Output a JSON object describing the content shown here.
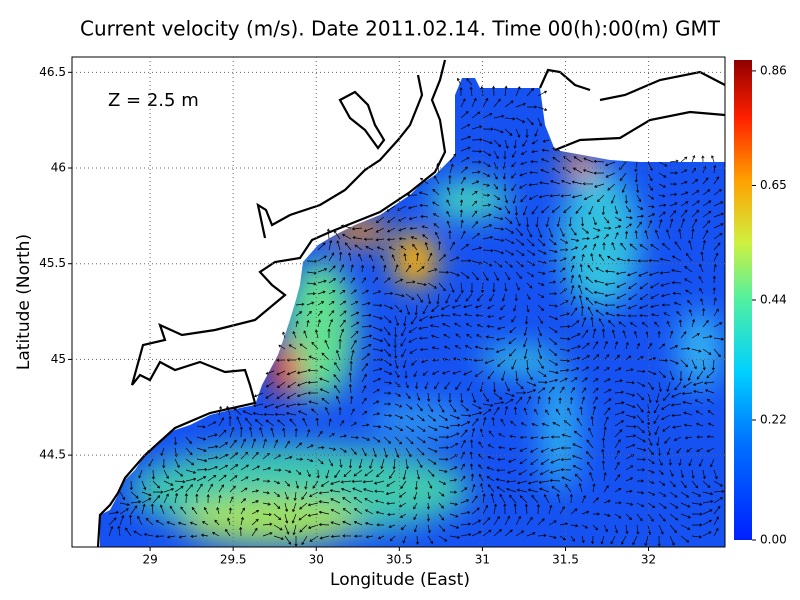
{
  "chart_data": {
    "type": "map",
    "title": "Current velocity (m/s). Date 2011.02.14. Time 00(h):00(m) GMT",
    "annotation": "Z = 2.5 m",
    "x_label": "Longitude (East)",
    "y_label": "Latitude (North)",
    "xlim": [
      28.53,
      32.46
    ],
    "ylim": [
      44.02,
      46.58
    ],
    "xticks": [
      29,
      29.5,
      30,
      30.5,
      31,
      31.5,
      32
    ],
    "yticks": [
      44.5,
      45,
      45.5,
      46,
      46.5
    ],
    "grid": true,
    "colorbar": {
      "lim": [
        0,
        0.88
      ],
      "ticks": [
        {
          "value": 0,
          "label": "0.00"
        },
        0.22,
        0.44,
        0.65,
        0.86
      ]
    }
  }
}
